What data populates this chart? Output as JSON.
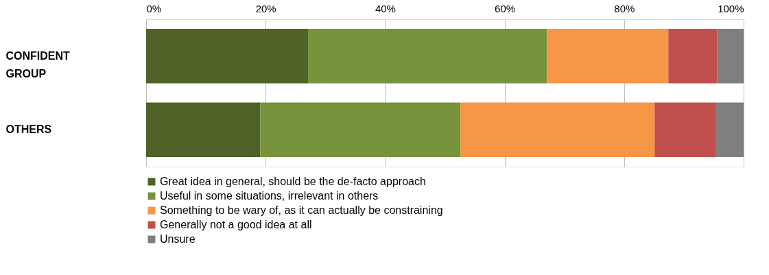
{
  "chart_data": {
    "type": "bar",
    "orientation": "horizontal",
    "stacked": true,
    "categories": [
      "CONFIDENT GROUP",
      "OTHERS"
    ],
    "series": [
      {
        "name": "Great idea in general, should be the de-facto approach",
        "color": "#4f6228",
        "values": [
          27.1,
          19.1
        ]
      },
      {
        "name": "Useful in some situations, irrelevant in others",
        "color": "#77933c",
        "values": [
          40.0,
          33.5
        ]
      },
      {
        "name": "Something to be wary of, as it can actually be constraining",
        "color": "#f79646",
        "values": [
          20.3,
          32.5
        ]
      },
      {
        "name": "Generally not a good idea at all",
        "color": "#c0504d",
        "values": [
          8.2,
          10.2
        ]
      },
      {
        "name": "Unsure",
        "color": "#7f7f7f",
        "values": [
          4.4,
          4.7
        ]
      }
    ],
    "xlim": [
      0,
      100
    ],
    "xticks": [
      {
        "value": 0,
        "label": "0%"
      },
      {
        "value": 20,
        "label": "20%"
      },
      {
        "value": 40,
        "label": "40%"
      },
      {
        "value": 60,
        "label": "60%"
      },
      {
        "value": 80,
        "label": "80%"
      },
      {
        "value": 100,
        "label": "100%"
      }
    ],
    "grid": "x",
    "legend": "bottom"
  }
}
